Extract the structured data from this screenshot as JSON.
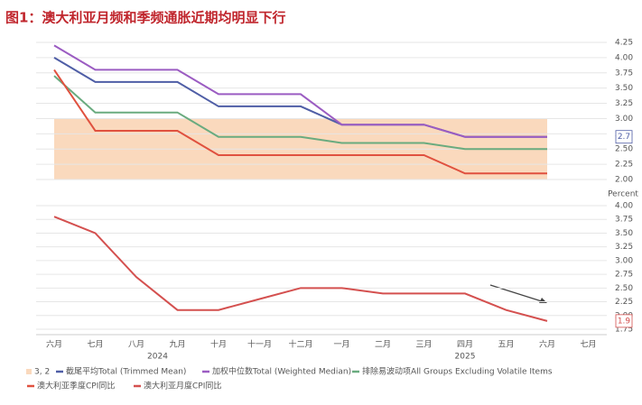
{
  "chart_data": {
    "title": "图1：澳大利亚月频和季频通胀近期均明显下行",
    "charts": [
      {
        "type": "line",
        "band": {
          "name": "3, 2",
          "from": 2,
          "to": 3,
          "color": "#fad9bd"
        },
        "ylim": [
          2.0,
          4.25
        ],
        "yticks": [
          2.0,
          2.25,
          2.5,
          2.75,
          3.0,
          3.25,
          3.5,
          3.75,
          4.0,
          4.25
        ],
        "grid": true,
        "series": [
          {
            "name": "截尾平均Total (Trimmed Mean)",
            "color": "#4f5ea6",
            "values": [
              4.0,
              3.6,
              3.6,
              3.6,
              3.2,
              3.2,
              3.2,
              2.9,
              2.9,
              2.9,
              2.7,
              2.7,
              2.7,
              null
            ]
          },
          {
            "name": "加权中位数Total (Weighted Median)",
            "color": "#9b5cc2",
            "values": [
              4.2,
              3.8,
              3.8,
              3.8,
              3.4,
              3.4,
              3.4,
              2.9,
              2.9,
              2.9,
              2.7,
              2.7,
              2.7,
              null
            ]
          },
          {
            "name": "排除易波动项All Groups Excluding Volatile Items",
            "color": "#6aab7f",
            "values": [
              3.7,
              3.1,
              3.1,
              3.1,
              2.7,
              2.7,
              2.7,
              2.6,
              2.6,
              2.6,
              2.5,
              2.5,
              2.5,
              null
            ]
          },
          {
            "name": "澳大利亚季度CPI同比",
            "color": "#e0513f",
            "values": [
              3.8,
              2.8,
              2.8,
              2.8,
              2.4,
              2.4,
              2.4,
              2.4,
              2.4,
              2.4,
              2.1,
              2.1,
              2.1,
              null
            ]
          }
        ]
      },
      {
        "type": "line",
        "y_label": "Percent",
        "categories": [
          "六月",
          "七月",
          "八月",
          "九月",
          "十月",
          "十一月",
          "十二月",
          "一月",
          "二月",
          "三月",
          "四月",
          "五月",
          "六月",
          "七月"
        ],
        "year_labels": [
          null,
          null,
          null,
          "2024",
          null,
          null,
          null,
          null,
          null,
          null,
          "2025",
          null,
          null,
          null
        ],
        "ylim": [
          1.75,
          4.0
        ],
        "yticks": [
          1.75,
          2.0,
          2.25,
          2.5,
          2.75,
          3.0,
          3.25,
          3.5,
          3.75,
          4.0
        ],
        "grid": true,
        "series": [
          {
            "name": "澳大利亚月度CPI同比",
            "color": "#d4504f",
            "values": [
              3.8,
              3.5,
              2.7,
              2.1,
              2.1,
              2.3,
              2.5,
              2.5,
              2.4,
              2.4,
              2.4,
              2.1,
              1.9,
              null
            ]
          }
        ]
      }
    ]
  }
}
